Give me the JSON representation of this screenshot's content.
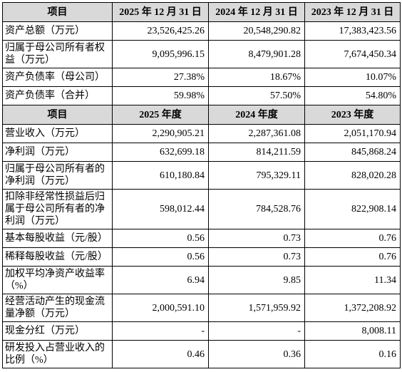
{
  "table": {
    "header": [
      "项目",
      "2025 年 12 月 31 日",
      "2024 年 12 月 31 日",
      "2023 年 12 月 31 日"
    ],
    "rows": [
      [
        "资产总额（万元）",
        "23,526,425.26",
        "20,548,290.82",
        "17,383,423.56"
      ],
      [
        "归属于母公司所有者权益（万元）",
        "9,095,996.15",
        "8,479,901.28",
        "7,674,450.34"
      ],
      [
        "资产负债率（母公司）",
        "27.38%",
        "18.67%",
        "10.07%"
      ],
      [
        "资产负债率（合并）",
        "59.98%",
        "57.50%",
        "54.80%"
      ]
    ],
    "header2": [
      "项目",
      "2025 年度",
      "2024 年度",
      "2023 年度"
    ],
    "rows2": [
      [
        "营业收入（万元）",
        "2,290,905.21",
        "2,287,361.08",
        "2,051,170.94"
      ],
      [
        "净利润（万元）",
        "632,699.18",
        "814,211.59",
        "845,868.24"
      ],
      [
        "归属于母公司所有者的净利润（万元）",
        "610,180.84",
        "795,329.11",
        "828,020.28"
      ],
      [
        "扣除非经常性损益后归属于母公司所有者的净利润（万元）",
        "598,012.44",
        "784,528.76",
        "822,908.14"
      ],
      [
        "基本每股收益（元/股）",
        "0.56",
        "0.73",
        "0.76"
      ],
      [
        "稀释每股收益（元/股）",
        "0.56",
        "0.73",
        "0.76"
      ],
      [
        "加权平均净资产收益率（%）",
        "6.94",
        "9.85",
        "11.34"
      ],
      [
        "经营活动产生的现金流量净额（万元）",
        "2,000,591.10",
        "1,571,959.92",
        "1,372,208.92"
      ],
      [
        "现金分红（万元）",
        "-",
        "-",
        "8,008.11"
      ],
      [
        "研发投入占营业收入的比例（%）",
        "0.46",
        "0.36",
        "0.16"
      ]
    ]
  }
}
